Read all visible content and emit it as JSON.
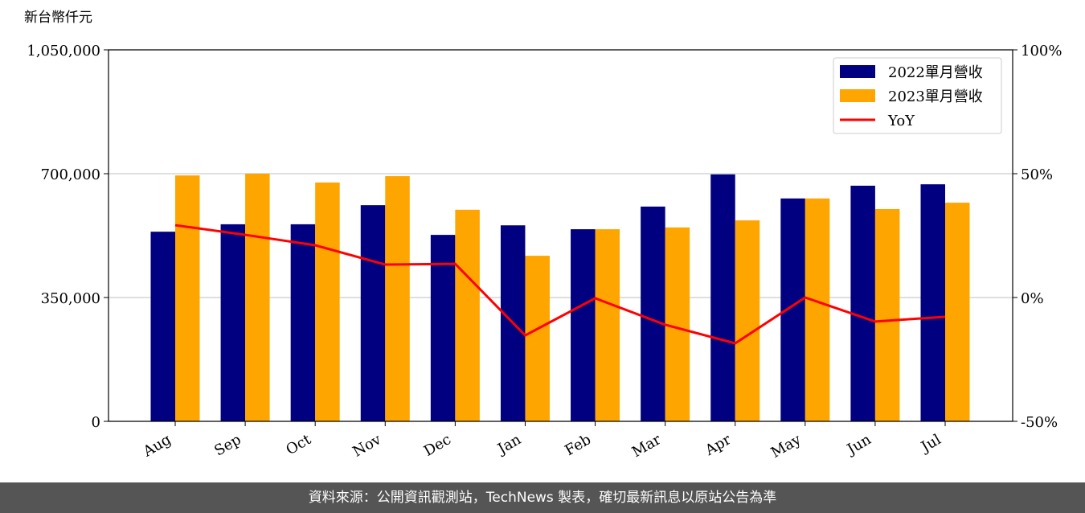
{
  "chart_data": {
    "type": "bar",
    "y_label": "新台幣仟元",
    "categories": [
      "Aug",
      "Sep",
      "Oct",
      "Nov",
      "Dec",
      "Jan",
      "Feb",
      "Mar",
      "Apr",
      "May",
      "Jun",
      "Jul"
    ],
    "series": [
      {
        "name": "2022單月營收",
        "color": "#000080",
        "values": [
          536000,
          557000,
          557000,
          611000,
          527000,
          554000,
          543000,
          607000,
          698000,
          630000,
          666000,
          670000
        ]
      },
      {
        "name": "2023單月營收",
        "color": "#ffa500",
        "values": [
          695000,
          700000,
          675000,
          693000,
          598000,
          468000,
          543000,
          548000,
          568000,
          630000,
          600000,
          618000
        ]
      },
      {
        "name": "YoY",
        "color": "#ff0000",
        "axis": "y2",
        "type": "line",
        "values": [
          29.2,
          25.3,
          21.1,
          13.3,
          13.6,
          -15.3,
          -0.3,
          -11,
          -18.5,
          0,
          -9.7,
          -7.8
        ]
      }
    ],
    "ylim": [
      0,
      1050000
    ],
    "yticks": [
      0,
      {
        "value": 350000,
        "label": "350,000"
      },
      {
        "value": 700000,
        "label": "700,000"
      },
      {
        "value": 1050000,
        "label": "1,050,000"
      }
    ],
    "y2lim": [
      -50,
      100
    ],
    "y2ticks": [
      {
        "value": -50,
        "label": "-50%"
      },
      {
        "value": 0,
        "label": "0%"
      },
      {
        "value": 50,
        "label": "50%"
      },
      {
        "value": 100,
        "label": "100%"
      }
    ],
    "grid": true,
    "legend": "upper right"
  },
  "footer": "資料來源：公開資訊觀測站，TechNews 製表，確切最新訊息以原站公告為準"
}
